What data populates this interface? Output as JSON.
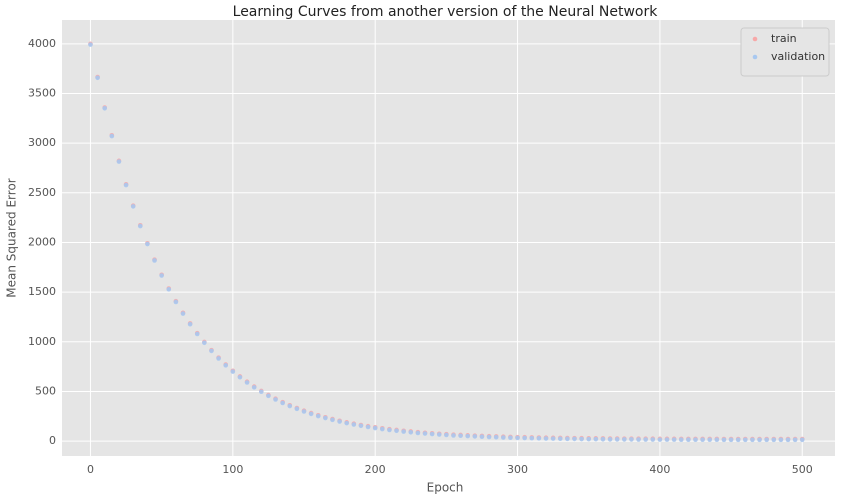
{
  "chart_data": {
    "type": "scatter",
    "title": "Learning Curves from another version of the Neural Network",
    "x_label": "Epoch",
    "y_label": "Mean Squared Error",
    "x": [
      0,
      5,
      10,
      15,
      20,
      25,
      30,
      35,
      40,
      45,
      50,
      55,
      60,
      65,
      70,
      75,
      80,
      85,
      90,
      95,
      100,
      105,
      110,
      115,
      120,
      125,
      130,
      135,
      140,
      145,
      150,
      155,
      160,
      165,
      170,
      175,
      180,
      185,
      190,
      195,
      200,
      205,
      210,
      215,
      220,
      225,
      230,
      235,
      240,
      245,
      250,
      255,
      260,
      265,
      270,
      275,
      280,
      285,
      290,
      295,
      300,
      305,
      310,
      315,
      320,
      325,
      330,
      335,
      340,
      345,
      350,
      355,
      360,
      365,
      370,
      375,
      380,
      385,
      390,
      395,
      400,
      405,
      410,
      415,
      420,
      425,
      430,
      435,
      440,
      445,
      450,
      455,
      460,
      465,
      470,
      475,
      480,
      485,
      490,
      495,
      500
    ],
    "series": [
      {
        "name": "train",
        "color": "#f7a8a8",
        "values": [
          4000,
          3666,
          3359,
          3079,
          2822,
          2586,
          2371,
          2173,
          1992,
          1827,
          1675,
          1536,
          1409,
          1292,
          1185,
          1087,
          998,
          916,
          840,
          771,
          708,
          651,
          598,
          549,
          505,
          464,
          427,
          392,
          361,
          333,
          306,
          282,
          260,
          240,
          222,
          205,
          189,
          175,
          162,
          150,
          139,
          129,
          120,
          112,
          104,
          97,
          90,
          84,
          79,
          74,
          70,
          65,
          62,
          58,
          55,
          52,
          49,
          47,
          44,
          42,
          40,
          39,
          37,
          36,
          34,
          33,
          32,
          31,
          30,
          29,
          28,
          28,
          27,
          26,
          26,
          25,
          25,
          24,
          24,
          24,
          23,
          23,
          23,
          22,
          22,
          22,
          22,
          22,
          22,
          21,
          21,
          21,
          21,
          21,
          21,
          21,
          21,
          21,
          21,
          21,
          21
        ]
      },
      {
        "name": "validation",
        "color": "#a8c8f0",
        "values": [
          3992,
          3658,
          3351,
          3071,
          2814,
          2578,
          2363,
          2165,
          1984,
          1819,
          1667,
          1528,
          1401,
          1284,
          1177,
          1079,
          990,
          908,
          832,
          763,
          700,
          643,
          590,
          541,
          497,
          456,
          419,
          384,
          353,
          325,
          298,
          274,
          252,
          232,
          214,
          197,
          181,
          167,
          154,
          142,
          131,
          121,
          112,
          104,
          96,
          89,
          82,
          76,
          71,
          66,
          62,
          57,
          54,
          50,
          47,
          44,
          41,
          39,
          36,
          34,
          32,
          31,
          29,
          28,
          26,
          25,
          24,
          23,
          22,
          21,
          20,
          20,
          19,
          18,
          18,
          17,
          17,
          16,
          16,
          16,
          15,
          15,
          15,
          14,
          14,
          14,
          14,
          14,
          14,
          13,
          13,
          13,
          13,
          13,
          13,
          13,
          13,
          13,
          13,
          13,
          13
        ]
      }
    ],
    "xlim": [
      -20,
      523
    ],
    "ylim": [
      -150,
      4240
    ],
    "xticks": [
      0,
      100,
      200,
      300,
      400,
      500
    ],
    "yticks": [
      0,
      500,
      1000,
      1500,
      2000,
      2500,
      3000,
      3500,
      4000
    ],
    "grid": true,
    "legend": "upper right"
  }
}
